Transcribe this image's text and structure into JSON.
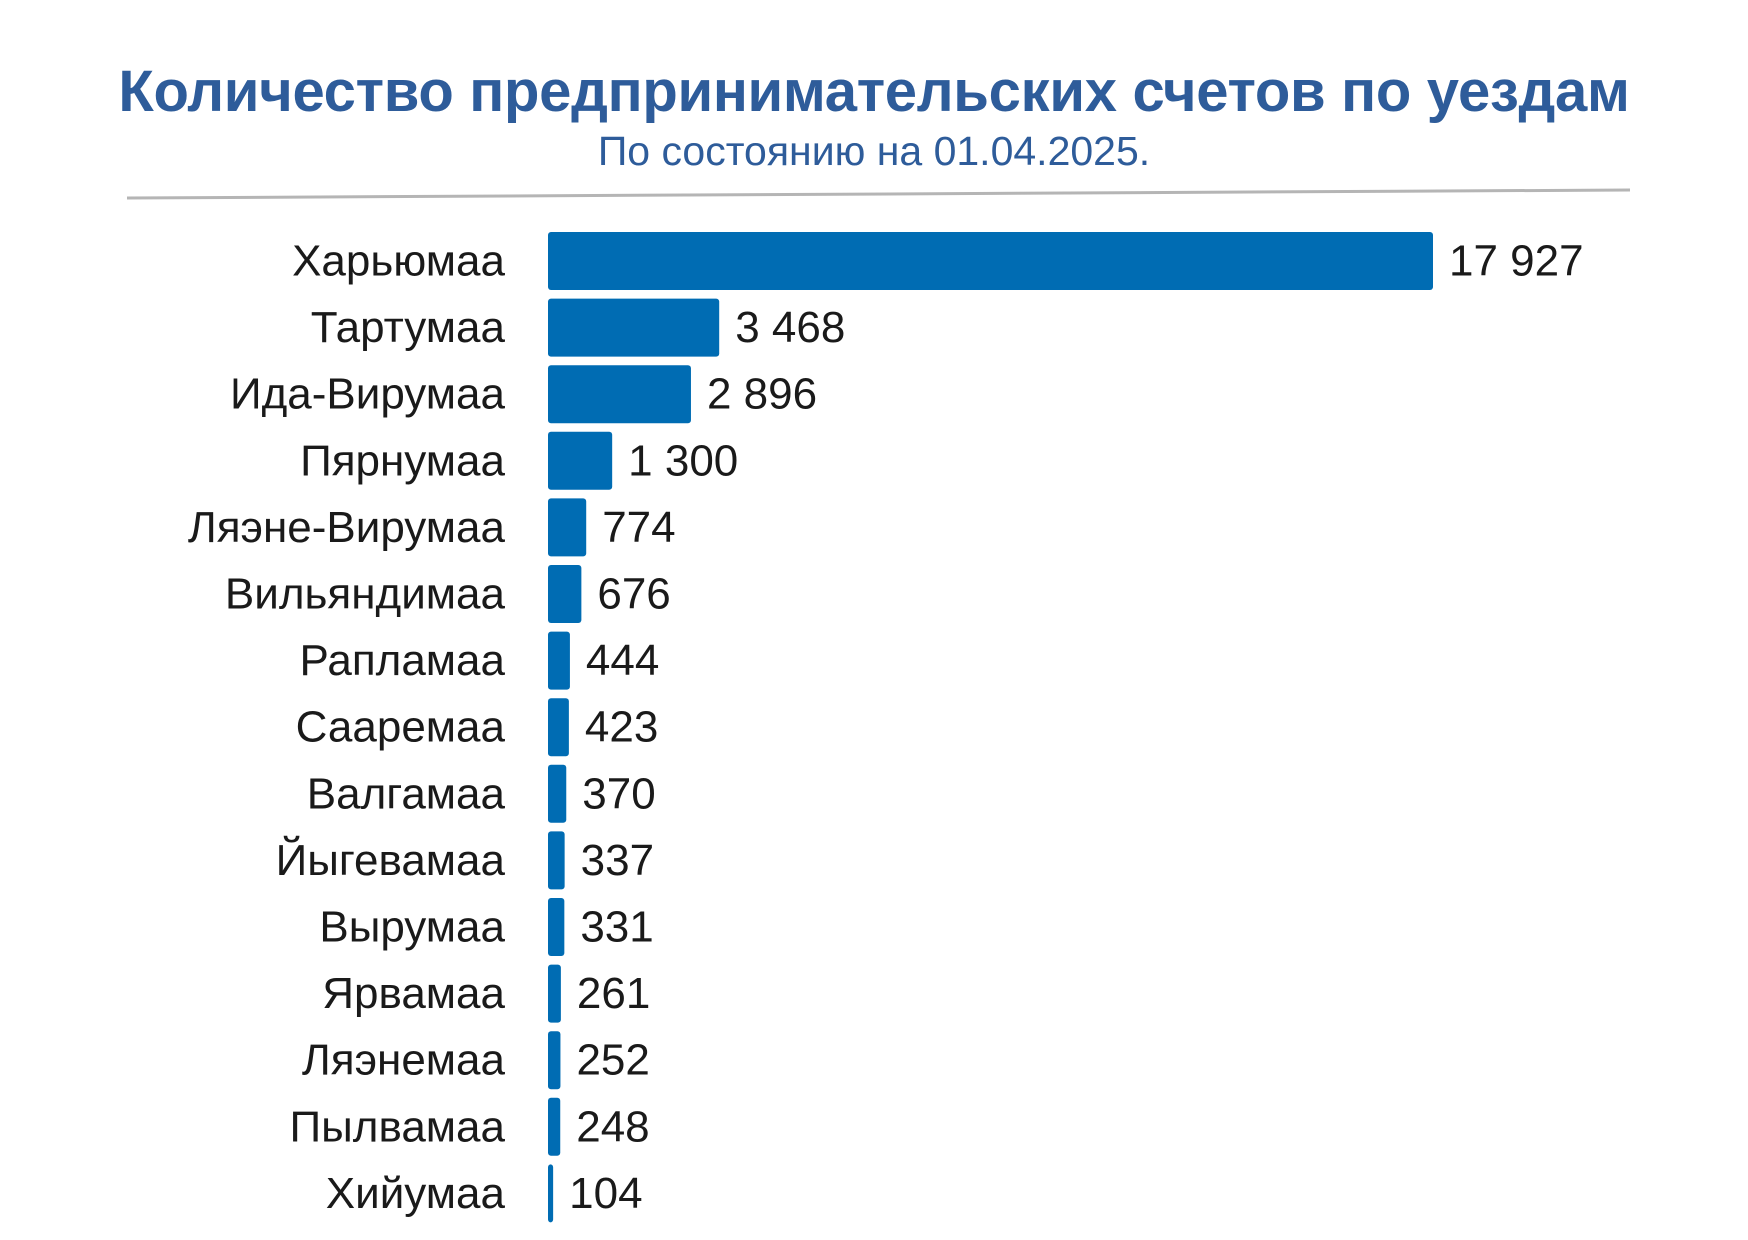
{
  "header": {
    "title": "Количество предпринимательских счетов по уездам",
    "subtitle": "По состоянию на 01.04.2025."
  },
  "colors": {
    "bar": "#006cb3",
    "title": "#2e5c9a",
    "divider": "#b5b5b5",
    "text": "#1a1a1a"
  },
  "chart_data": {
    "type": "bar",
    "orientation": "horizontal",
    "title": "Количество предпринимательских счетов по уездам",
    "subtitle": "По состоянию на 01.04.2025.",
    "categories": [
      "Харьюмаа",
      "Тартумаа",
      "Ида-Вирумаа",
      "Пярнумаа",
      "Ляэне-Вирумаа",
      "Вильяндимаа",
      "Рапламаа",
      "Сааремаа",
      "Валгамаа",
      "Йыгевамаа",
      "Вырумаа",
      "Ярвамаа",
      "Ляэнемаа",
      "Пылвамаа",
      "Хийумаа"
    ],
    "values": [
      17927,
      3468,
      2896,
      1300,
      774,
      676,
      444,
      423,
      370,
      337,
      331,
      261,
      252,
      248,
      104
    ],
    "value_labels": [
      "17 927",
      "3 468",
      "2 896",
      "1 300",
      "774",
      "676",
      "444",
      "423",
      "370",
      "337",
      "331",
      "261",
      "252",
      "248",
      "104"
    ],
    "xlim": [
      0,
      17927
    ],
    "grid": false,
    "legend": "none"
  }
}
